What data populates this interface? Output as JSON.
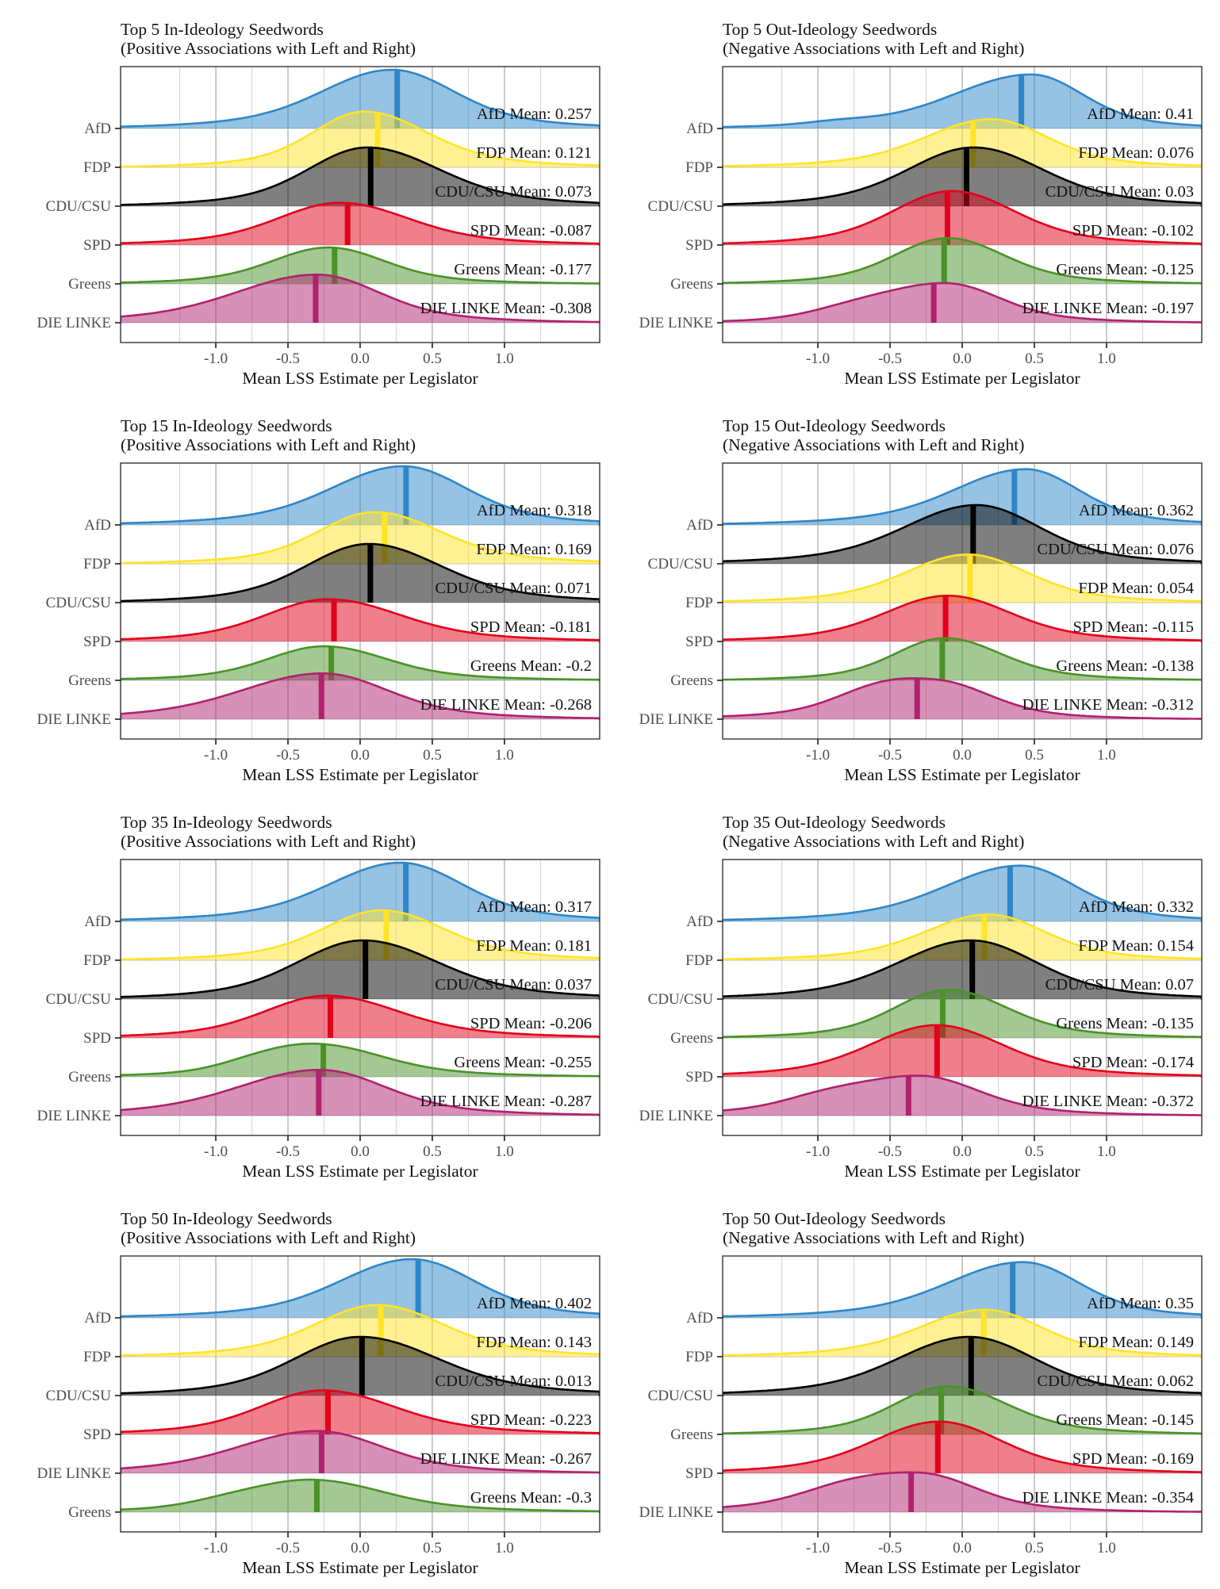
{
  "figure": {
    "axis_title": "Mean LSS Estimate per Legislator",
    "x_tick_labels": [
      "-1.0",
      "-0.5",
      "0.0",
      "0.5",
      "1.0"
    ],
    "x_tick_values": [
      -1.0,
      -0.5,
      0.0,
      0.5,
      1.0
    ],
    "x_minor_values": [
      -1.25,
      -0.75,
      -0.25,
      0.25,
      0.75,
      1.25
    ],
    "x_range": [
      -1.66,
      1.66
    ],
    "grid": "on",
    "legend": "none",
    "parties": [
      {
        "id": "afd",
        "label": "AfD",
        "color": "#2e86c8"
      },
      {
        "id": "fdp",
        "label": "FDP",
        "color": "#ffe428"
      },
      {
        "id": "cdu",
        "label": "CDU/CSU",
        "color": "#000000"
      },
      {
        "id": "spd",
        "label": "SPD",
        "color": "#e2001a"
      },
      {
        "id": "greens",
        "label": "Greens",
        "color": "#4a9228"
      },
      {
        "id": "linke",
        "label": "DIE LINKE",
        "color": "#b0216e"
      }
    ],
    "style": {
      "background": "#ffffff",
      "fill_opacity": 0.5,
      "grid_major": "#a8a8a8",
      "grid_minor": "#d4d4d4",
      "grid_row": "#bdbdbd",
      "border": "#333333",
      "text_dark": "#121212",
      "text_gray": "#4d4d4d"
    }
  },
  "chart_data": [
    {
      "type": "ridgeline-density",
      "title": "Top 5 In-Ideology Seedwords",
      "subtitle": "(Positive Associations with Left and Right)",
      "xlabel": "Mean LSS Estimate per Legislator",
      "x_ticks": [
        -1.0,
        -0.5,
        0.0,
        0.5,
        1.0
      ],
      "ridges": [
        {
          "party": "AfD",
          "mean": 0.257,
          "mean_label": "AfD Mean: 0.257",
          "color": "#2e86c8",
          "shape": {
            "mode": 0.22,
            "wl": 0.45,
            "wr": 0.4,
            "h": 1.0
          }
        },
        {
          "party": "FDP",
          "mean": 0.121,
          "mean_label": "FDP Mean: 0.121",
          "color": "#ffe428",
          "shape": {
            "mode": 0.03,
            "wl": 0.33,
            "wr": 0.4,
            "h": 0.95
          }
        },
        {
          "party": "CDU/CSU",
          "mean": 0.073,
          "mean_label": "CDU/CSU Mean: 0.073",
          "color": "#000000",
          "shape": {
            "mode": 0.05,
            "wl": 0.38,
            "wr": 0.46,
            "h": 1.0
          }
        },
        {
          "party": "SPD",
          "mean": -0.087,
          "mean_label": "SPD Mean: -0.087",
          "color": "#e2001a",
          "shape": {
            "mode": -0.14,
            "wl": 0.4,
            "wr": 0.44,
            "h": 0.72
          }
        },
        {
          "party": "Greens",
          "mean": -0.177,
          "mean_label": "Greens Mean: -0.177",
          "color": "#4a9228",
          "shape": {
            "mode": -0.22,
            "wl": 0.36,
            "wr": 0.36,
            "h": 0.62
          }
        },
        {
          "party": "DIE LINKE",
          "mean": -0.308,
          "mean_label": "DIE LINKE Mean: -0.308",
          "color": "#b0216e",
          "shape": {
            "mode": -0.3,
            "wl": 0.52,
            "wr": 0.4,
            "h": 0.82
          }
        }
      ]
    },
    {
      "type": "ridgeline-density",
      "title": "Top 5 Out-Ideology Seedwords",
      "subtitle": "(Negative Associations with Left and Right)",
      "xlabel": "Mean LSS Estimate per Legislator",
      "x_ticks": [
        -1.0,
        -0.5,
        0.0,
        0.5,
        1.0
      ],
      "ridges": [
        {
          "party": "AfD",
          "mean": 0.41,
          "mean_label": "AfD Mean: 0.41",
          "color": "#2e86c8",
          "shape": {
            "mode": 0.48,
            "wl": 0.5,
            "wr": 0.33,
            "h": 0.92,
            "bumps": [
              [
                -0.85,
                0.22,
                0.05
              ]
            ]
          }
        },
        {
          "party": "FDP",
          "mean": 0.076,
          "mean_label": "FDP Mean: 0.076",
          "color": "#ffe428",
          "shape": {
            "mode": 0.2,
            "wl": 0.42,
            "wr": 0.36,
            "h": 0.82
          }
        },
        {
          "party": "CDU/CSU",
          "mean": 0.03,
          "mean_label": "CDU/CSU Mean: 0.03",
          "color": "#000000",
          "shape": {
            "mode": 0.08,
            "wl": 0.42,
            "wr": 0.44,
            "h": 1.0
          }
        },
        {
          "party": "SPD",
          "mean": -0.102,
          "mean_label": "SPD Mean: -0.102",
          "color": "#e2001a",
          "shape": {
            "mode": -0.07,
            "wl": 0.38,
            "wr": 0.4,
            "h": 0.92
          }
        },
        {
          "party": "Greens",
          "mean": -0.125,
          "mean_label": "Greens Mean: -0.125",
          "color": "#4a9228",
          "shape": {
            "mode": -0.1,
            "wl": 0.34,
            "wr": 0.36,
            "h": 0.78
          }
        },
        {
          "party": "DIE LINKE",
          "mean": -0.197,
          "mean_label": "DIE LINKE Mean: -0.197",
          "color": "#b0216e",
          "shape": {
            "mode": -0.1,
            "wl": 0.4,
            "wr": 0.34,
            "h": 0.66,
            "bumps": [
              [
                -0.75,
                0.3,
                0.22
              ]
            ]
          }
        }
      ]
    },
    {
      "type": "ridgeline-density",
      "title": "Top 15 In-Ideology Seedwords",
      "subtitle": "(Positive Associations with Left and Right)",
      "xlabel": "Mean LSS Estimate per Legislator",
      "x_ticks": [
        -1.0,
        -0.5,
        0.0,
        0.5,
        1.0
      ],
      "ridges": [
        {
          "party": "AfD",
          "mean": 0.318,
          "mean_label": "AfD Mean: 0.318",
          "color": "#2e86c8",
          "shape": {
            "mode": 0.3,
            "wl": 0.46,
            "wr": 0.4,
            "h": 1.0
          }
        },
        {
          "party": "FDP",
          "mean": 0.169,
          "mean_label": "FDP Mean: 0.169",
          "color": "#ffe428",
          "shape": {
            "mode": 0.1,
            "wl": 0.36,
            "wr": 0.42,
            "h": 0.88
          }
        },
        {
          "party": "CDU/CSU",
          "mean": 0.071,
          "mean_label": "CDU/CSU Mean: 0.071",
          "color": "#000000",
          "shape": {
            "mode": 0.06,
            "wl": 0.4,
            "wr": 0.46,
            "h": 1.0
          }
        },
        {
          "party": "SPD",
          "mean": -0.181,
          "mean_label": "SPD Mean: -0.181",
          "color": "#e2001a",
          "shape": {
            "mode": -0.22,
            "wl": 0.4,
            "wr": 0.46,
            "h": 0.72
          }
        },
        {
          "party": "Greens",
          "mean": -0.2,
          "mean_label": "Greens Mean: -0.2",
          "color": "#4a9228",
          "shape": {
            "mode": -0.25,
            "wl": 0.36,
            "wr": 0.4,
            "h": 0.58
          }
        },
        {
          "party": "DIE LINKE",
          "mean": -0.268,
          "mean_label": "DIE LINKE Mean: -0.268",
          "color": "#b0216e",
          "shape": {
            "mode": -0.26,
            "wl": 0.52,
            "wr": 0.42,
            "h": 0.78
          }
        }
      ]
    },
    {
      "type": "ridgeline-density",
      "title": "Top 15 Out-Ideology Seedwords",
      "subtitle": "(Negative Associations with Left and Right)",
      "xlabel": "Mean LSS Estimate per Legislator",
      "x_ticks": [
        -1.0,
        -0.5,
        0.0,
        0.5,
        1.0
      ],
      "ridges": [
        {
          "party": "AfD",
          "mean": 0.362,
          "mean_label": "AfD Mean: 0.362",
          "color": "#2e86c8",
          "shape": {
            "mode": 0.44,
            "wl": 0.46,
            "wr": 0.34,
            "h": 0.95
          }
        },
        {
          "party": "CDU/CSU",
          "mean": 0.076,
          "mean_label": "CDU/CSU Mean: 0.076",
          "color": "#000000",
          "shape": {
            "mode": 0.1,
            "wl": 0.46,
            "wr": 0.4,
            "h": 1.0
          }
        },
        {
          "party": "FDP",
          "mean": 0.054,
          "mean_label": "FDP Mean: 0.054",
          "color": "#ffe428",
          "shape": {
            "mode": 0.04,
            "wl": 0.4,
            "wr": 0.38,
            "h": 0.82
          }
        },
        {
          "party": "SPD",
          "mean": -0.115,
          "mean_label": "SPD Mean: -0.115",
          "color": "#e2001a",
          "shape": {
            "mode": -0.1,
            "wl": 0.4,
            "wr": 0.4,
            "h": 0.78
          }
        },
        {
          "party": "Greens",
          "mean": -0.138,
          "mean_label": "Greens Mean: -0.138",
          "color": "#4a9228",
          "shape": {
            "mode": -0.12,
            "wl": 0.32,
            "wr": 0.36,
            "h": 0.72
          }
        },
        {
          "party": "DIE LINKE",
          "mean": -0.312,
          "mean_label": "DIE LINKE Mean: -0.312",
          "color": "#b0216e",
          "shape": {
            "mode": -0.16,
            "wl": 0.48,
            "wr": 0.34,
            "h": 0.62,
            "bumps": [
              [
                -0.6,
                0.28,
                0.28
              ]
            ]
          }
        }
      ]
    },
    {
      "type": "ridgeline-density",
      "title": "Top 35 In-Ideology Seedwords",
      "subtitle": "(Positive Associations with Left and Right)",
      "xlabel": "Mean LSS Estimate per Legislator",
      "x_ticks": [
        -1.0,
        -0.5,
        0.0,
        0.5,
        1.0
      ],
      "ridges": [
        {
          "party": "AfD",
          "mean": 0.317,
          "mean_label": "AfD Mean: 0.317",
          "color": "#2e86c8",
          "shape": {
            "mode": 0.28,
            "wl": 0.46,
            "wr": 0.4,
            "h": 1.0
          }
        },
        {
          "party": "FDP",
          "mean": 0.181,
          "mean_label": "FDP Mean: 0.181",
          "color": "#ffe428",
          "shape": {
            "mode": 0.15,
            "wl": 0.38,
            "wr": 0.4,
            "h": 0.85
          }
        },
        {
          "party": "CDU/CSU",
          "mean": 0.037,
          "mean_label": "CDU/CSU Mean: 0.037",
          "color": "#000000",
          "shape": {
            "mode": 0.02,
            "wl": 0.42,
            "wr": 0.48,
            "h": 1.0
          }
        },
        {
          "party": "SPD",
          "mean": -0.206,
          "mean_label": "SPD Mean: -0.206",
          "color": "#e2001a",
          "shape": {
            "mode": -0.23,
            "wl": 0.4,
            "wr": 0.46,
            "h": 0.72
          }
        },
        {
          "party": "Greens",
          "mean": -0.255,
          "mean_label": "Greens Mean: -0.255",
          "color": "#4a9228",
          "shape": {
            "mode": -0.3,
            "wl": 0.38,
            "wr": 0.42,
            "h": 0.55,
            "bumps": [
              [
                -0.75,
                0.25,
                0.12
              ]
            ]
          }
        },
        {
          "party": "DIE LINKE",
          "mean": -0.287,
          "mean_label": "DIE LINKE Mean: -0.287",
          "color": "#b0216e",
          "shape": {
            "mode": -0.28,
            "wl": 0.52,
            "wr": 0.42,
            "h": 0.78
          }
        }
      ]
    },
    {
      "type": "ridgeline-density",
      "title": "Top 35 Out-Ideology Seedwords",
      "subtitle": "(Negative Associations with Left and Right)",
      "xlabel": "Mean LSS Estimate per Legislator",
      "x_ticks": [
        -1.0,
        -0.5,
        0.0,
        0.5,
        1.0
      ],
      "ridges": [
        {
          "party": "AfD",
          "mean": 0.332,
          "mean_label": "AfD Mean: 0.332",
          "color": "#2e86c8",
          "shape": {
            "mode": 0.4,
            "wl": 0.48,
            "wr": 0.36,
            "h": 0.95
          }
        },
        {
          "party": "FDP",
          "mean": 0.154,
          "mean_label": "FDP Mean: 0.154",
          "color": "#ffe428",
          "shape": {
            "mode": 0.18,
            "wl": 0.4,
            "wr": 0.36,
            "h": 0.78
          }
        },
        {
          "party": "CDU/CSU",
          "mean": 0.07,
          "mean_label": "CDU/CSU Mean: 0.07",
          "color": "#000000",
          "shape": {
            "mode": 0.06,
            "wl": 0.46,
            "wr": 0.42,
            "h": 1.0
          }
        },
        {
          "party": "Greens",
          "mean": -0.135,
          "mean_label": "Greens Mean: -0.135",
          "color": "#4a9228",
          "shape": {
            "mode": -0.1,
            "wl": 0.34,
            "wr": 0.38,
            "h": 0.82
          }
        },
        {
          "party": "SPD",
          "mean": -0.174,
          "mean_label": "SPD Mean: -0.174",
          "color": "#e2001a",
          "shape": {
            "mode": -0.18,
            "wl": 0.42,
            "wr": 0.42,
            "h": 0.88
          }
        },
        {
          "party": "DIE LINKE",
          "mean": -0.372,
          "mean_label": "DIE LINKE Mean: -0.372",
          "color": "#b0216e",
          "shape": {
            "mode": -0.3,
            "wl": 0.52,
            "wr": 0.38,
            "h": 0.68,
            "bumps": [
              [
                -1.0,
                0.25,
                0.12
              ]
            ]
          }
        }
      ]
    },
    {
      "type": "ridgeline-density",
      "title": "Top 50 In-Ideology Seedwords",
      "subtitle": "(Positive Associations with Left and Right)",
      "xlabel": "Mean LSS Estimate per Legislator",
      "x_ticks": [
        -1.0,
        -0.5,
        0.0,
        0.5,
        1.0
      ],
      "ridges": [
        {
          "party": "AfD",
          "mean": 0.402,
          "mean_label": "AfD Mean: 0.402",
          "color": "#2e86c8",
          "shape": {
            "mode": 0.36,
            "wl": 0.46,
            "wr": 0.4,
            "h": 1.0
          }
        },
        {
          "party": "FDP",
          "mean": 0.143,
          "mean_label": "FDP Mean: 0.143",
          "color": "#ffe428",
          "shape": {
            "mode": 0.12,
            "wl": 0.4,
            "wr": 0.42,
            "h": 0.88
          }
        },
        {
          "party": "CDU/CSU",
          "mean": 0.013,
          "mean_label": "CDU/CSU Mean: 0.013",
          "color": "#000000",
          "shape": {
            "mode": 0.0,
            "wl": 0.42,
            "wr": 0.5,
            "h": 1.0
          }
        },
        {
          "party": "SPD",
          "mean": -0.223,
          "mean_label": "SPD Mean: -0.223",
          "color": "#e2001a",
          "shape": {
            "mode": -0.26,
            "wl": 0.4,
            "wr": 0.46,
            "h": 0.75
          }
        },
        {
          "party": "DIE LINKE",
          "mean": -0.267,
          "mean_label": "DIE LINKE Mean: -0.267",
          "color": "#b0216e",
          "shape": {
            "mode": -0.3,
            "wl": 0.5,
            "wr": 0.42,
            "h": 0.72
          }
        },
        {
          "party": "Greens",
          "mean": -0.3,
          "mean_label": "Greens Mean: -0.3",
          "color": "#4a9228",
          "shape": {
            "mode": -0.34,
            "wl": 0.42,
            "wr": 0.46,
            "h": 0.55,
            "bumps": [
              [
                -0.95,
                0.25,
                0.1
              ]
            ]
          }
        }
      ]
    },
    {
      "type": "ridgeline-density",
      "title": "Top 50 Out-Ideology Seedwords",
      "subtitle": "(Negative Associations with Left and Right)",
      "xlabel": "Mean LSS Estimate per Legislator",
      "x_ticks": [
        -1.0,
        -0.5,
        0.0,
        0.5,
        1.0
      ],
      "ridges": [
        {
          "party": "AfD",
          "mean": 0.35,
          "mean_label": "AfD Mean: 0.35",
          "color": "#2e86c8",
          "shape": {
            "mode": 0.42,
            "wl": 0.48,
            "wr": 0.36,
            "h": 0.95
          }
        },
        {
          "party": "FDP",
          "mean": 0.149,
          "mean_label": "FDP Mean: 0.149",
          "color": "#ffe428",
          "shape": {
            "mode": 0.16,
            "wl": 0.42,
            "wr": 0.36,
            "h": 0.8
          }
        },
        {
          "party": "CDU/CSU",
          "mean": 0.062,
          "mean_label": "CDU/CSU Mean: 0.062",
          "color": "#000000",
          "shape": {
            "mode": 0.05,
            "wl": 0.46,
            "wr": 0.42,
            "h": 1.0
          }
        },
        {
          "party": "Greens",
          "mean": -0.145,
          "mean_label": "Greens Mean: -0.145",
          "color": "#4a9228",
          "shape": {
            "mode": -0.1,
            "wl": 0.34,
            "wr": 0.38,
            "h": 0.82
          }
        },
        {
          "party": "SPD",
          "mean": -0.169,
          "mean_label": "SPD Mean: -0.169",
          "color": "#e2001a",
          "shape": {
            "mode": -0.16,
            "wl": 0.42,
            "wr": 0.4,
            "h": 0.88
          }
        },
        {
          "party": "DIE LINKE",
          "mean": -0.354,
          "mean_label": "DIE LINKE Mean: -0.354",
          "color": "#b0216e",
          "shape": {
            "mode": -0.3,
            "wl": 0.52,
            "wr": 0.36,
            "h": 0.66,
            "bumps": [
              [
                -0.85,
                0.28,
                0.15
              ]
            ]
          }
        }
      ]
    }
  ]
}
